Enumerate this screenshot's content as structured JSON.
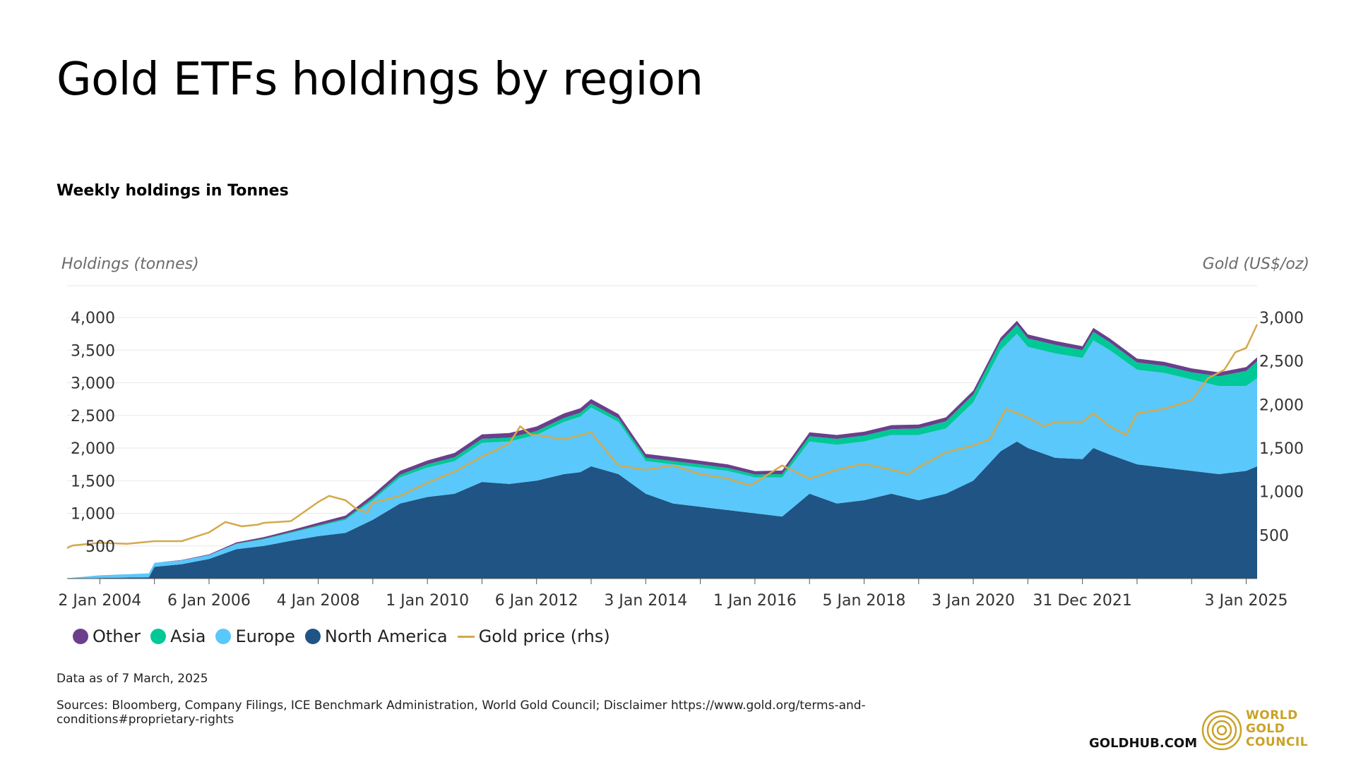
{
  "header": {
    "title": "Gold ETFs holdings by region",
    "subtitle": "Weekly holdings in Tonnes"
  },
  "chart_data": {
    "type": "area",
    "left_axis_label": "Holdings (tonnes)",
    "right_axis_label": "Gold (US$/oz)",
    "left_ticks": [
      "500",
      "1,000",
      "1,500",
      "2,000",
      "2,500",
      "3,000",
      "3,500",
      "4,000"
    ],
    "right_ticks": [
      "500",
      "1,000",
      "1,500",
      "2,000",
      "2,500",
      "3,000"
    ],
    "ylim_left": [
      0,
      4000
    ],
    "ylim_right": [
      0,
      3000
    ],
    "x_ticks": [
      "2 Jan 2004",
      "6 Jan 2006",
      "4 Jan 2008",
      "1 Jan 2010",
      "6 Jan 2012",
      "3 Jan 2014",
      "1 Jan 2016",
      "5 Jan 2018",
      "3 Jan 2020",
      "31 Dec 2021",
      "3 Jan 2025"
    ],
    "x_tick_years": [
      2004.0,
      2006.0,
      2008.0,
      2010.0,
      2012.0,
      2014.0,
      2016.0,
      2018.0,
      2020.0,
      2022.0,
      2025.0
    ],
    "x": [
      2003.4,
      2004.0,
      2004.9,
      2005.0,
      2005.5,
      2006.0,
      2006.5,
      2007.0,
      2007.5,
      2008.0,
      2008.5,
      2009.0,
      2009.5,
      2010.0,
      2010.5,
      2011.0,
      2011.5,
      2012.0,
      2012.5,
      2012.8,
      2013.0,
      2013.5,
      2014.0,
      2014.5,
      2015.0,
      2015.5,
      2016.0,
      2016.5,
      2017.0,
      2017.5,
      2018.0,
      2018.5,
      2019.0,
      2019.5,
      2020.0,
      2020.5,
      2020.8,
      2021.0,
      2021.5,
      2022.0,
      2022.2,
      2022.5,
      2023.0,
      2023.5,
      2024.0,
      2024.5,
      2025.0,
      2025.2
    ],
    "series": [
      {
        "name": "North America",
        "color": "#1f5484",
        "values": [
          0,
          10,
          20,
          180,
          220,
          300,
          450,
          500,
          580,
          650,
          700,
          900,
          1150,
          1250,
          1300,
          1480,
          1450,
          1500,
          1600,
          1630,
          1720,
          1600,
          1300,
          1150,
          1100,
          1050,
          1000,
          950,
          1300,
          1150,
          1200,
          1300,
          1200,
          1300,
          1500,
          1950,
          2100,
          2000,
          1850,
          1830,
          2000,
          1900,
          1750,
          1700,
          1650,
          1600,
          1650,
          1720
        ]
      },
      {
        "name": "Europe",
        "color": "#5ac8fa",
        "values": [
          5,
          40,
          60,
          60,
          60,
          60,
          80,
          100,
          120,
          150,
          200,
          300,
          400,
          450,
          500,
          600,
          650,
          700,
          800,
          850,
          900,
          800,
          500,
          600,
          600,
          600,
          550,
          600,
          800,
          900,
          900,
          900,
          1000,
          1000,
          1200,
          1550,
          1650,
          1550,
          1600,
          1550,
          1650,
          1600,
          1450,
          1450,
          1400,
          1350,
          1300,
          1350
        ]
      },
      {
        "name": "Asia",
        "color": "#00c896",
        "values": [
          0,
          0,
          0,
          0,
          0,
          0,
          5,
          10,
          10,
          15,
          20,
          30,
          40,
          50,
          60,
          60,
          60,
          60,
          60,
          60,
          60,
          55,
          50,
          50,
          50,
          45,
          45,
          50,
          80,
          90,
          90,
          90,
          100,
          110,
          120,
          130,
          140,
          130,
          130,
          120,
          130,
          120,
          110,
          110,
          110,
          150,
          230,
          260
        ]
      },
      {
        "name": "Other",
        "color": "#6b3f8c",
        "values": [
          0,
          0,
          0,
          0,
          5,
          10,
          20,
          25,
          30,
          40,
          45,
          55,
          60,
          60,
          65,
          70,
          70,
          70,
          70,
          70,
          70,
          65,
          60,
          60,
          55,
          55,
          50,
          55,
          60,
          60,
          60,
          60,
          60,
          60,
          60,
          60,
          60,
          60,
          60,
          60,
          60,
          60,
          60,
          60,
          60,
          60,
          60,
          60
        ]
      },
      {
        "name": "Gold price (rhs)",
        "color": "#d4a94c",
        "price_x": [
          2003.4,
          2003.5,
          2004.0,
          2004.5,
          2005.0,
          2005.5,
          2006.0,
          2006.3,
          2006.6,
          2006.9,
          2007.0,
          2007.5,
          2008.0,
          2008.2,
          2008.5,
          2008.7,
          2008.9,
          2009.0,
          2009.5,
          2010.0,
          2010.5,
          2011.0,
          2011.5,
          2011.7,
          2011.9,
          2012.0,
          2012.5,
          2013.0,
          2013.3,
          2013.5,
          2014.0,
          2014.5,
          2015.0,
          2015.5,
          2015.9,
          2016.0,
          2016.5,
          2017.0,
          2017.5,
          2018.0,
          2018.5,
          2018.8,
          2019.0,
          2019.5,
          2020.0,
          2020.3,
          2020.6,
          2020.8,
          2021.0,
          2021.3,
          2021.5,
          2022.0,
          2022.2,
          2022.5,
          2022.8,
          2023.0,
          2023.5,
          2024.0,
          2024.3,
          2024.6,
          2024.8,
          2025.0,
          2025.2
        ],
        "price_values": [
          350,
          380,
          410,
          400,
          430,
          430,
          530,
          650,
          600,
          620,
          640,
          660,
          880,
          950,
          900,
          800,
          760,
          870,
          950,
          1100,
          1230,
          1400,
          1550,
          1750,
          1650,
          1650,
          1600,
          1680,
          1450,
          1300,
          1250,
          1300,
          1200,
          1150,
          1070,
          1100,
          1300,
          1150,
          1250,
          1320,
          1250,
          1200,
          1280,
          1450,
          1530,
          1600,
          1950,
          1900,
          1850,
          1750,
          1800,
          1800,
          1900,
          1750,
          1650,
          1900,
          1950,
          2050,
          2300,
          2400,
          2600,
          2650,
          2920
        ]
      }
    ]
  },
  "legend": {
    "items": [
      {
        "label": "Other",
        "color": "#6b3f8c",
        "shape": "circle"
      },
      {
        "label": "Asia",
        "color": "#00c896",
        "shape": "circle"
      },
      {
        "label": "Europe",
        "color": "#5ac8fa",
        "shape": "circle"
      },
      {
        "label": "North America",
        "color": "#1f5484",
        "shape": "circle"
      },
      {
        "label": "Gold price (rhs)",
        "color": "#d4a94c",
        "shape": "line"
      }
    ]
  },
  "footer": {
    "note": "Data as of 7 March, 2025",
    "sources": "Sources: Bloomberg, Company Filings, ICE Benchmark Administration, World Gold Council; Disclaimer https://www.gold.org/terms-and-conditions#proprietary-rights",
    "goldhub": "GOLDHUB.COM",
    "wgc_line1": "WORLD",
    "wgc_line2": "GOLD",
    "wgc_line3": "COUNCIL"
  }
}
